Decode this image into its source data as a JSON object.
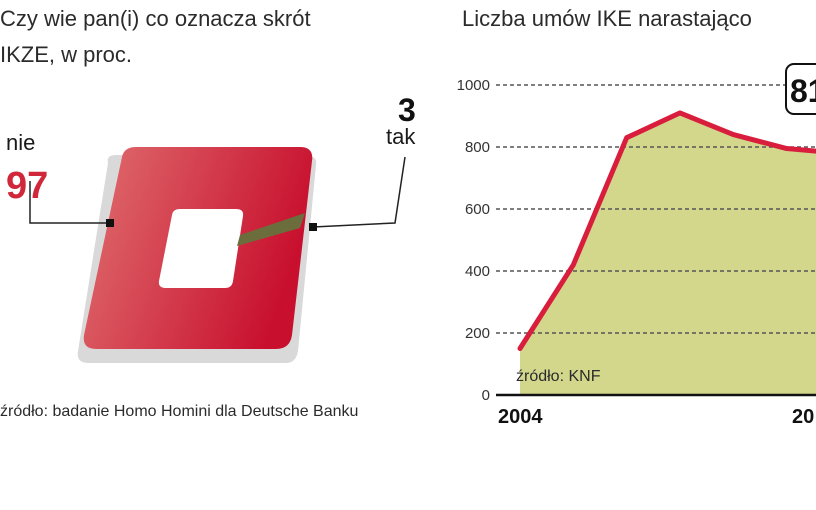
{
  "colors": {
    "primary": "#d0283a",
    "tak": "#6b6e3c",
    "line": "#d81e3c",
    "area_fill": "#d2d78c",
    "grid": "#555555"
  },
  "left": {
    "title_line1": "Czy wie pan(i) co oznacza skrót",
    "title_line2": "IKZE, w proc.",
    "source": "źródło: badanie Homo Homini dla Deutsche Banku"
  },
  "right": {
    "title": "Liczba umów IKE narastająco",
    "source": "źródło: KNF",
    "x_start_label": "2004",
    "x_end_label": "20",
    "callout": "81"
  },
  "chart_data": [
    {
      "type": "pie",
      "title": "Czy wie pan(i) co oznacza skrót IKZE, w proc.",
      "categories": [
        "nie",
        "tak"
      ],
      "values": [
        97,
        3
      ],
      "labels": [
        "97",
        "3"
      ]
    },
    {
      "type": "area",
      "title": "Liczba umów IKE narastająco",
      "y_ticks": [
        "0",
        "200",
        "400",
        "600",
        "800",
        "1000"
      ],
      "ylim": [
        0,
        1000
      ],
      "x_labels": [
        "2004",
        "20"
      ],
      "grid": true,
      "x": [
        0,
        1,
        2,
        3,
        4,
        5,
        6
      ],
      "values": [
        150,
        420,
        830,
        910,
        840,
        795,
        780
      ]
    }
  ]
}
